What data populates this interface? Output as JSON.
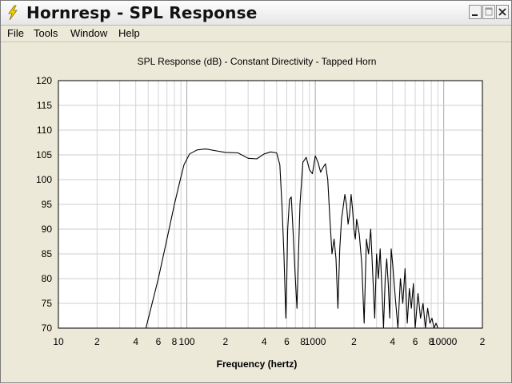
{
  "window": {
    "title": "Hornresp - SPL Response",
    "minimize_label": "_",
    "maximize_label": "□",
    "close_label": "✕"
  },
  "menu": [
    {
      "label": "File"
    },
    {
      "label": "Tools"
    },
    {
      "label": "Window"
    },
    {
      "label": "Help"
    }
  ],
  "chart_data": {
    "type": "line",
    "title": "SPL Response (dB) - Constant Directivity - Tapped Horn",
    "xlabel": "Frequency (hertz)",
    "ylabel": "",
    "xscale": "log",
    "xlim": [
      10,
      20000
    ],
    "ylim": [
      70,
      120
    ],
    "grid": true,
    "xtick_labels": [
      {
        "v": 10,
        "t": "10"
      },
      {
        "v": 20,
        "t": "2"
      },
      {
        "v": 40,
        "t": "4"
      },
      {
        "v": 60,
        "t": "6"
      },
      {
        "v": 80,
        "t": "8"
      },
      {
        "v": 100,
        "t": "100"
      },
      {
        "v": 200,
        "t": "2"
      },
      {
        "v": 400,
        "t": "4"
      },
      {
        "v": 600,
        "t": "6"
      },
      {
        "v": 800,
        "t": "8"
      },
      {
        "v": 1000,
        "t": "1000"
      },
      {
        "v": 2000,
        "t": "2"
      },
      {
        "v": 4000,
        "t": "4"
      },
      {
        "v": 6000,
        "t": "6"
      },
      {
        "v": 8000,
        "t": "8"
      },
      {
        "v": 10000,
        "t": "10000"
      },
      {
        "v": 20000,
        "t": "2"
      }
    ],
    "ytick_labels": [
      "70",
      "75",
      "80",
      "85",
      "90",
      "95",
      "100",
      "105",
      "110",
      "115",
      "120"
    ],
    "series": [
      {
        "color": "#000000",
        "x": [
          48,
          60,
          70,
          80,
          88,
          95,
          105,
          120,
          140,
          170,
          200,
          250,
          300,
          350,
          400,
          450,
          500,
          530,
          550,
          570,
          590,
          600,
          610,
          630,
          650,
          670,
          700,
          720,
          740,
          760,
          800,
          850,
          900,
          950,
          1000,
          1050,
          1100,
          1150,
          1200,
          1250,
          1300,
          1350,
          1400,
          1450,
          1500,
          1550,
          1600,
          1650,
          1700,
          1750,
          1800,
          1850,
          1900,
          1950,
          2000,
          2050,
          2100,
          2200,
          2300,
          2400,
          2500,
          2600,
          2700,
          2800,
          2900,
          3000,
          3100,
          3200,
          3300,
          3400,
          3500,
          3600,
          3700,
          3800,
          3900,
          4000,
          4200,
          4400,
          4600,
          4800,
          5000,
          5200,
          5400,
          5600,
          5800,
          6000,
          6300,
          6600,
          6900,
          7200,
          7500,
          7800,
          8100,
          8400,
          8700,
          9000
        ],
        "y": [
          70,
          80,
          88,
          95,
          99.5,
          103,
          105.2,
          106,
          106.2,
          105.8,
          105.5,
          105.4,
          104.3,
          104.2,
          105.2,
          105.6,
          105.4,
          103,
          95,
          85,
          72,
          80,
          90,
          96,
          96.5,
          90,
          80,
          74,
          85,
          95,
          103.5,
          104.5,
          102,
          101.2,
          104.8,
          103.5,
          101.5,
          102.5,
          103.2,
          100,
          92,
          85,
          88,
          84,
          74,
          86,
          92,
          94.5,
          97,
          95,
          91,
          93,
          97,
          94,
          90,
          88,
          92,
          89,
          83,
          71,
          88,
          85,
          90,
          81,
          72,
          85,
          80,
          86,
          78,
          70,
          80,
          84,
          79,
          72,
          86,
          83,
          76,
          70,
          80,
          75,
          82,
          71,
          78,
          74,
          79,
          70,
          77,
          72,
          75,
          70,
          74,
          71,
          72,
          70,
          71,
          70
        ]
      }
    ]
  }
}
